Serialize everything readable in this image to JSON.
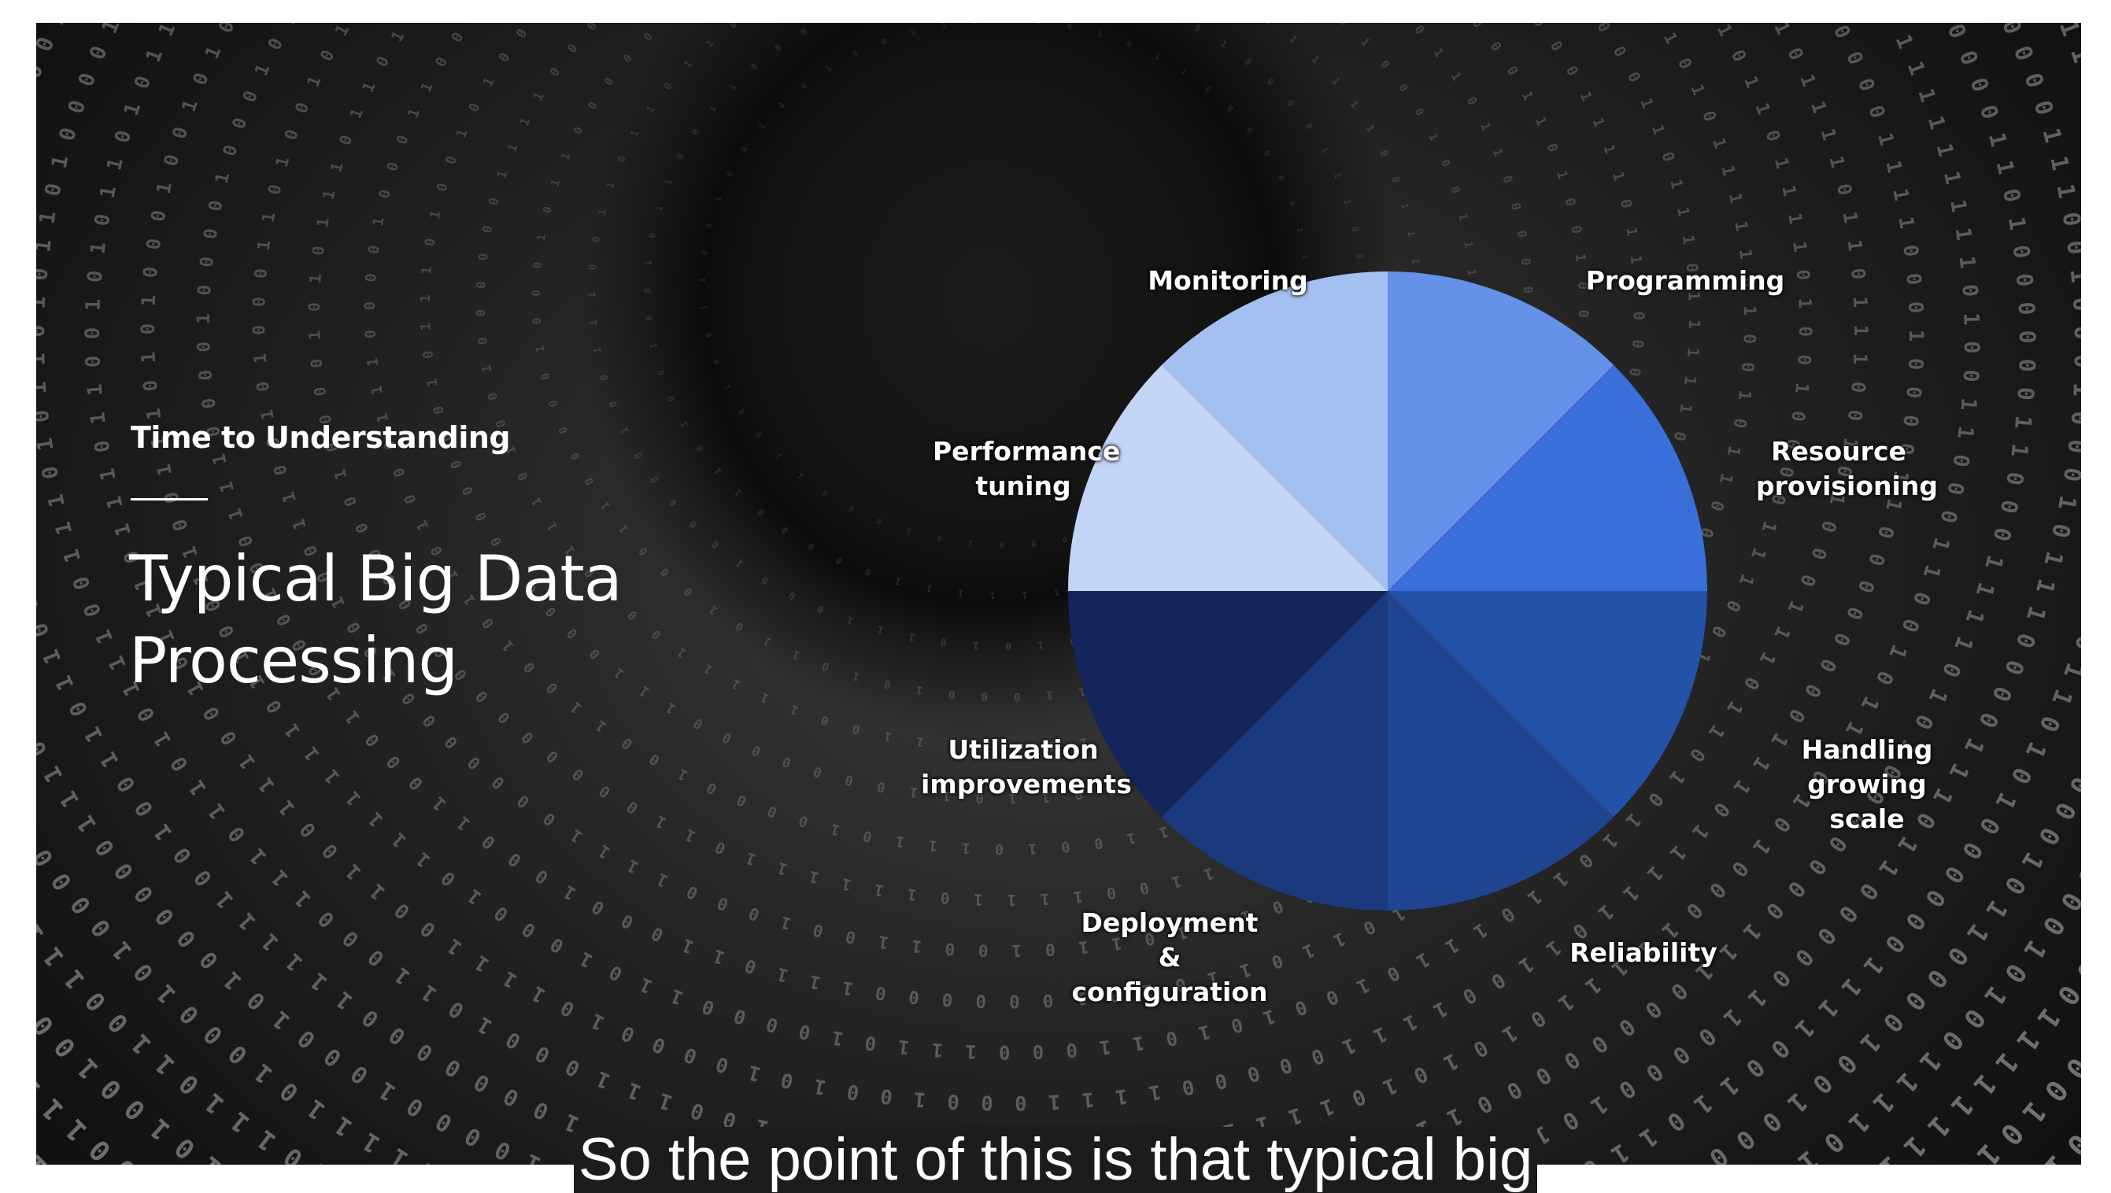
{
  "slide": {
    "subtitle": "Time to Understanding",
    "title": "Typical Big Data Processing"
  },
  "caption": "So the point of this is that typical big",
  "chart_data": {
    "type": "pie",
    "title": "",
    "slices": [
      {
        "label": "Programming",
        "value": 12.5,
        "color": "#6591e8"
      },
      {
        "label": "Resource provisioning",
        "value": 12.5,
        "color": "#3a6edb"
      },
      {
        "label": "Handling growing scale",
        "value": 12.5,
        "color": "#2452a8"
      },
      {
        "label": "Reliability",
        "value": 12.5,
        "color": "#1f4590"
      },
      {
        "label": "Deployment & configuration",
        "value": 12.5,
        "color": "#1b3a7e"
      },
      {
        "label": "Utilization improvements",
        "value": 12.5,
        "color": "#13255a"
      },
      {
        "label": "Performance tuning",
        "value": 12.5,
        "color": "#c3d5f5"
      },
      {
        "label": "Monitoring",
        "value": 12.5,
        "color": "#a4c0f0"
      }
    ]
  }
}
